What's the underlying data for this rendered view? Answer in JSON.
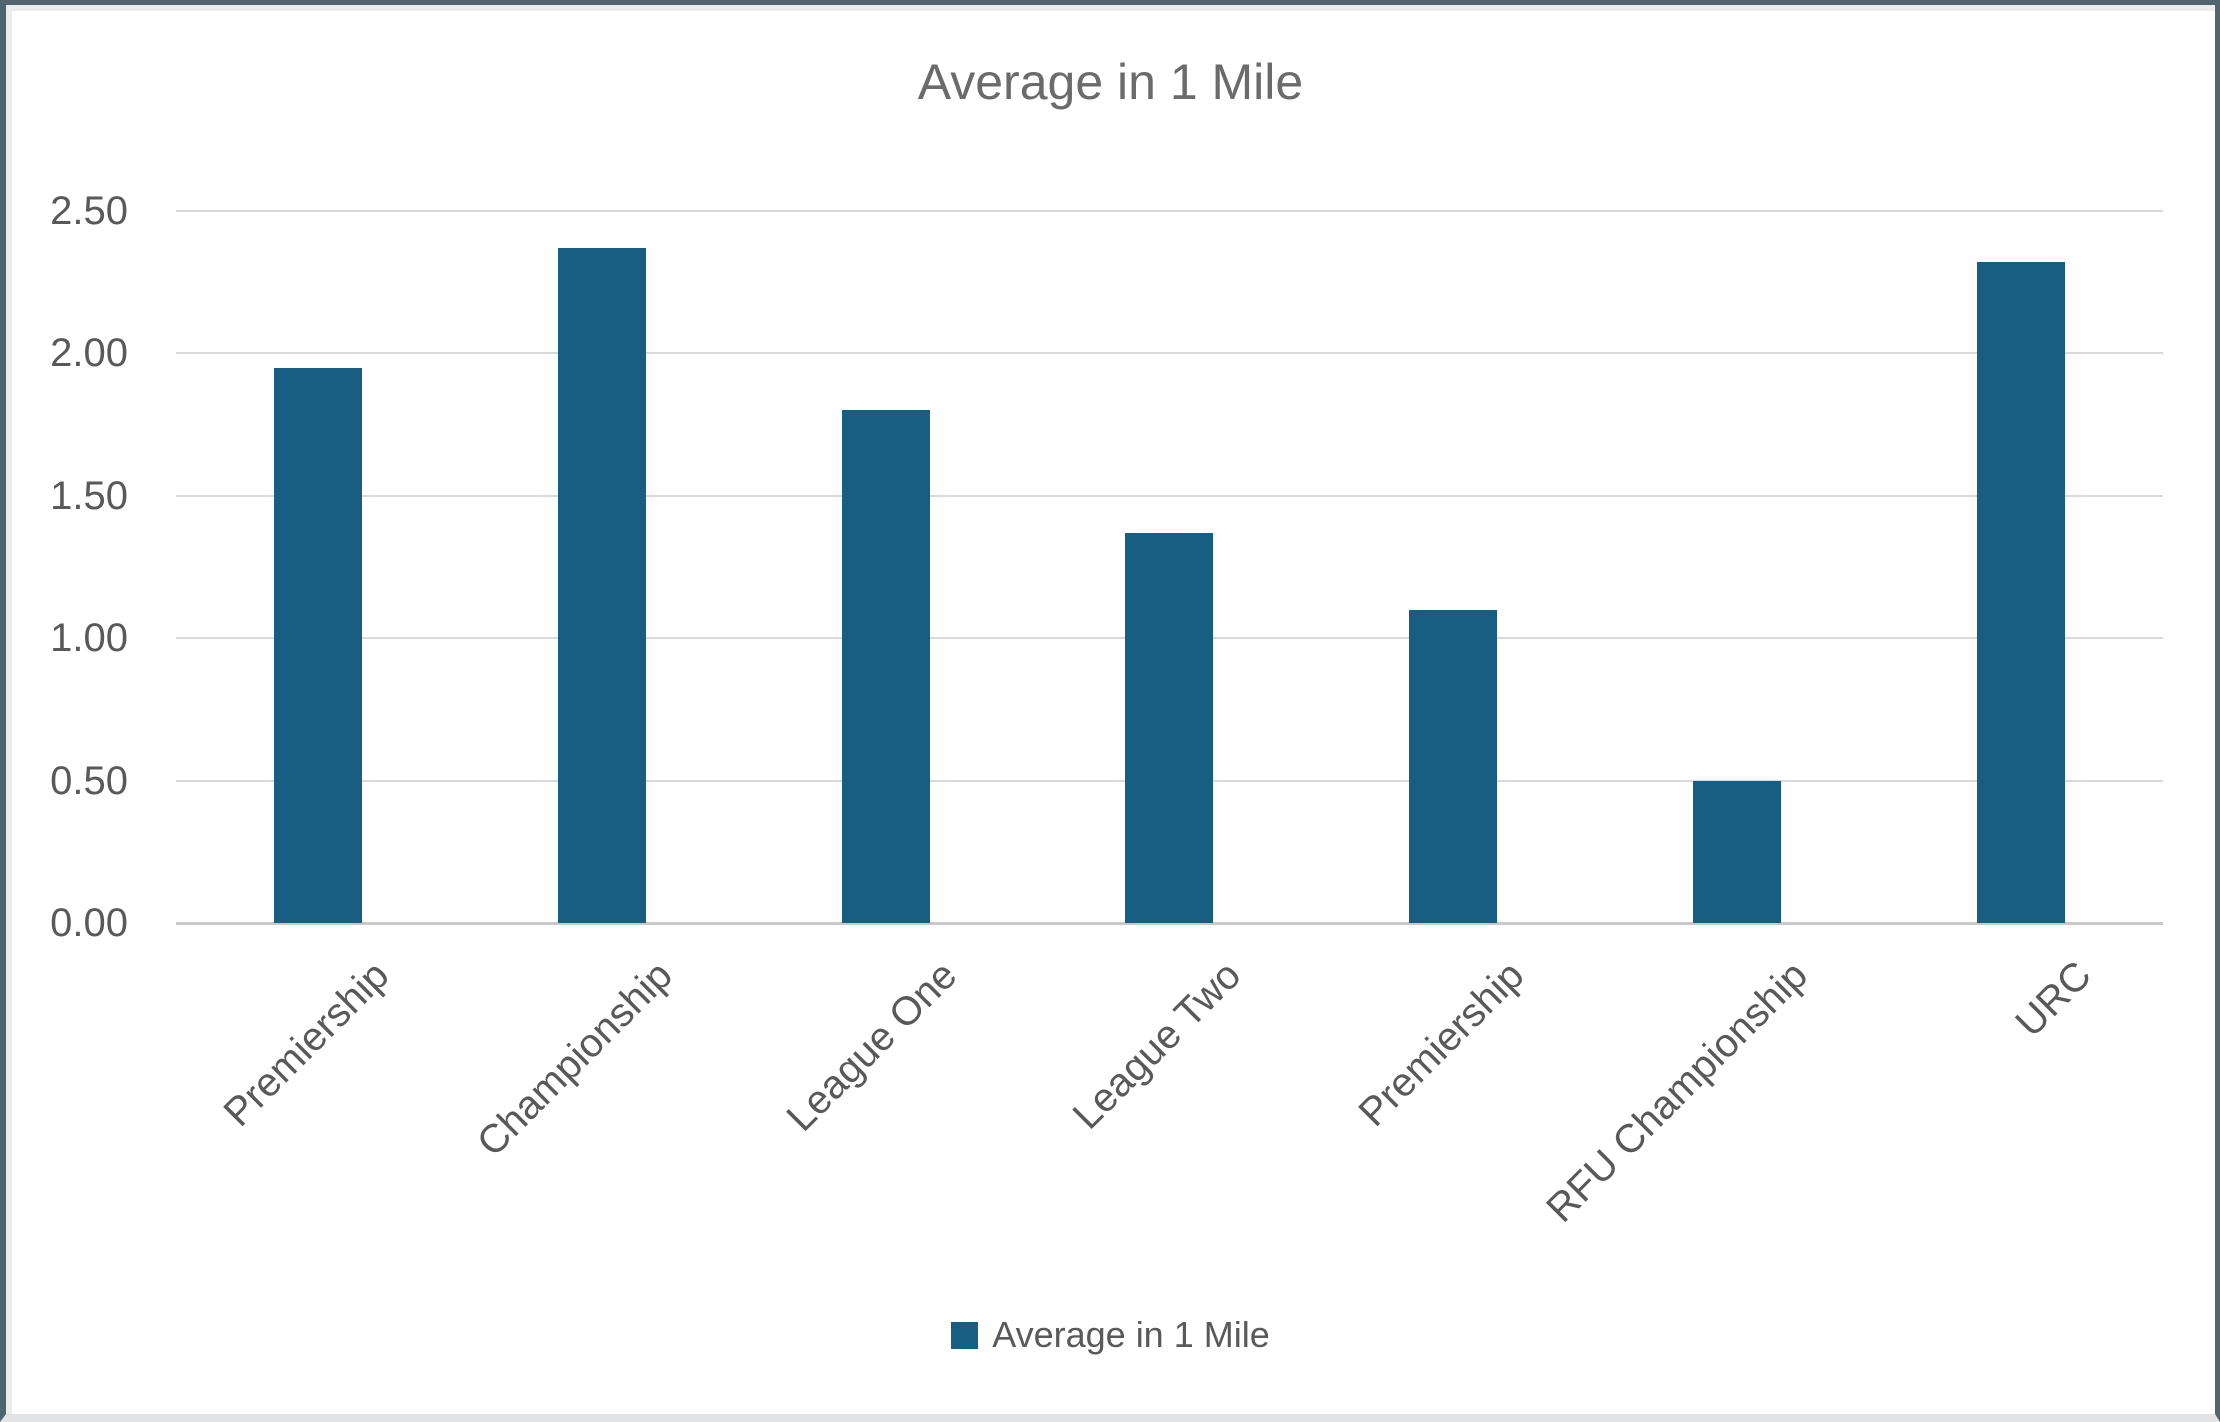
{
  "chart_data": {
    "type": "bar",
    "title": "Average in 1 Mile",
    "series_name": "Average in 1 Mile",
    "categories": [
      "Premiership",
      "Championship",
      "League One",
      "League Two",
      "Premiership",
      "RFU Championship",
      "URC"
    ],
    "values": [
      1.95,
      2.37,
      1.8,
      1.37,
      1.1,
      0.5,
      2.32
    ],
    "y_ticks": [
      "2.50",
      "2.00",
      "1.50",
      "1.00",
      "0.50",
      "0.00"
    ],
    "ylim": [
      0,
      2.5
    ],
    "grid": true,
    "legend_position": "bottom",
    "xlabel": "",
    "ylabel": "",
    "colors": {
      "bar": "#175E82",
      "gridline": "#D9D9D9",
      "axis_line": "#C9C9C9",
      "tick_text": "#595959",
      "title_text": "#6B6B6B",
      "window_border": "#51666F"
    }
  }
}
